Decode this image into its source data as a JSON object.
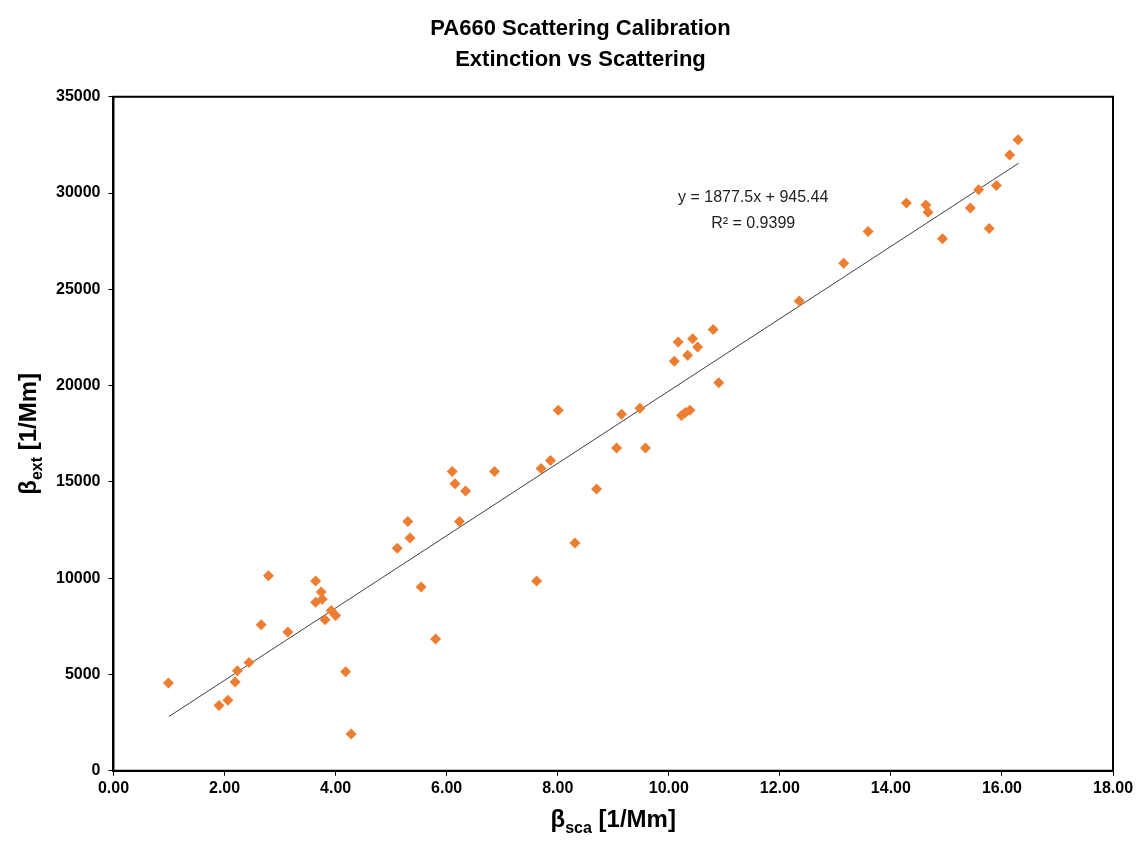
{
  "chart_data": {
    "type": "scatter",
    "title": "PA660 Scattering Calibration",
    "subtitle": "Extinction vs Scattering",
    "xlabel": "β$_{sca}$ [1/Mm]",
    "ylabel": "β$_{ext}$ [1/Mm]",
    "xlim": [
      0,
      18
    ],
    "xticks": [
      {
        "value": 0,
        "label": "0.00"
      },
      {
        "value": 2,
        "label": "2.00"
      },
      {
        "value": 4,
        "label": "4.00"
      },
      {
        "value": 6,
        "label": "6.00"
      },
      {
        "value": 8,
        "label": "8.00"
      },
      {
        "value": 10,
        "label": "10.00"
      },
      {
        "value": 12,
        "label": "12.00"
      },
      {
        "value": 14,
        "label": "14.00"
      },
      {
        "value": 16,
        "label": "16.00"
      },
      {
        "value": 18,
        "label": "18.00"
      }
    ],
    "ylim": [
      0,
      35000
    ],
    "yticks": [
      0,
      5000,
      10000,
      15000,
      20000,
      25000,
      30000,
      35000
    ],
    "grid": false,
    "legend": false,
    "marker": "diamond",
    "series": [
      {
        "color": "#ed7d31",
        "x": [
          0.99,
          1.9,
          2.06,
          2.19,
          2.23,
          2.44,
          2.66,
          2.79,
          3.14,
          3.64,
          3.64,
          3.74,
          3.76,
          3.81,
          3.92,
          4.0,
          4.18,
          4.28,
          5.11,
          5.3,
          5.34,
          5.54,
          5.8,
          6.1,
          6.15,
          6.23,
          6.34,
          6.86,
          7.62,
          7.7,
          7.87,
          8.01,
          8.31,
          8.7,
          9.06,
          9.15,
          9.48,
          9.58,
          10.1,
          10.17,
          10.23,
          10.3,
          10.34,
          10.38,
          10.43,
          10.52,
          10.8,
          10.9,
          12.35,
          13.15,
          13.59,
          14.28,
          14.63,
          14.67,
          14.93,
          15.43,
          15.58,
          15.77,
          15.9,
          16.14,
          16.29
        ],
        "values": [
          4560,
          3390,
          3660,
          4610,
          5200,
          5620,
          7580,
          10130,
          7210,
          9860,
          8750,
          9280,
          8910,
          7850,
          8330,
          8060,
          5140,
          1910,
          11560,
          12940,
          12090,
          9550,
          6840,
          15540,
          14900,
          12940,
          14530,
          15540,
          9860,
          15700,
          16120,
          18720,
          11830,
          14640,
          16760,
          18510,
          18830,
          16760,
          21270,
          22270,
          18450,
          18610,
          21580,
          18720,
          22430,
          22010,
          22910,
          20150,
          24390,
          26360,
          28000,
          29490,
          29380,
          29010,
          27630,
          29220,
          30170,
          28160,
          30390,
          31980,
          32770
        ]
      },
      {
        "type": "line",
        "color": "#404040",
        "marker": "none",
        "x": [
          1,
          16.3
        ],
        "values": [
          2820,
          31550
        ]
      }
    ],
    "annotations": [
      "y = 1877.5x + 945.44",
      "R² = 0.9399"
    ]
  }
}
